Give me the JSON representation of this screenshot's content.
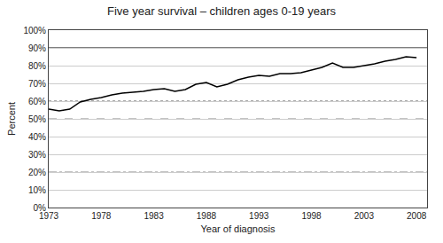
{
  "chart_data": {
    "type": "line",
    "title": "Five year survival – children ages 0-19 years",
    "xlabel": "Year of diagnosis",
    "ylabel": "Percent",
    "x": [
      1973,
      1974,
      1975,
      1976,
      1977,
      1978,
      1979,
      1980,
      1981,
      1982,
      1983,
      1984,
      1985,
      1986,
      1987,
      1988,
      1989,
      1990,
      1991,
      1992,
      1993,
      1994,
      1995,
      1996,
      1997,
      1998,
      1999,
      2000,
      2001,
      2002,
      2003,
      2004,
      2005,
      2006,
      2007,
      2008
    ],
    "values": [
      0.555,
      0.545,
      0.555,
      0.595,
      0.61,
      0.62,
      0.635,
      0.645,
      0.65,
      0.655,
      0.665,
      0.67,
      0.655,
      0.665,
      0.695,
      0.705,
      0.68,
      0.695,
      0.72,
      0.735,
      0.745,
      0.74,
      0.755,
      0.755,
      0.76,
      0.775,
      0.79,
      0.815,
      0.79,
      0.79,
      0.8,
      0.81,
      0.825,
      0.835,
      0.85,
      0.845
    ],
    "color": "#000000",
    "xlim": [
      1973,
      2009
    ],
    "xticks": [
      1973,
      1978,
      1983,
      1988,
      1993,
      1998,
      2003,
      2008
    ],
    "ylim": [
      0,
      1.0
    ],
    "yticks": [
      {
        "value": 0,
        "label": "0%"
      },
      {
        "value": 0.1,
        "label": "10%"
      },
      {
        "value": 0.2,
        "label": "20%"
      },
      {
        "value": 0.3,
        "label": "30%"
      },
      {
        "value": 0.4,
        "label": "40%"
      },
      {
        "value": 0.5,
        "label": "50%"
      },
      {
        "value": 0.6,
        "label": "60%"
      },
      {
        "value": 0.7,
        "label": "70%"
      },
      {
        "value": 0.8,
        "label": "80%"
      },
      {
        "value": 0.9,
        "label": "90%"
      },
      {
        "value": 1.0,
        "label": "100%"
      }
    ],
    "grid": true,
    "ref_lines": [
      {
        "y": 0.9,
        "line_style": "solid",
        "color": "#000000"
      },
      {
        "y": 0.6,
        "line_style": "dotted",
        "color": "#555555"
      },
      {
        "y": 0.5,
        "line_style": "dashed",
        "color": "#888888"
      },
      {
        "y": 0.2,
        "line_style": "dashdot",
        "color": "#888888"
      }
    ]
  }
}
